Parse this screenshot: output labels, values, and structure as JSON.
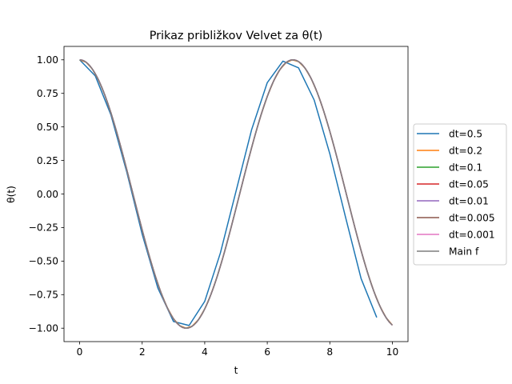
{
  "chart_data": {
    "type": "line",
    "title": "Prikaz približkov Velvet za θ(t)",
    "xlabel": "t",
    "ylabel": "θ(t)",
    "xlim": [
      -0.5,
      10.5
    ],
    "ylim": [
      -1.1,
      1.1
    ],
    "xticks": [
      0,
      2,
      4,
      6,
      8,
      10
    ],
    "xtick_labels": [
      "0",
      "2",
      "4",
      "6",
      "8",
      "10"
    ],
    "yticks": [
      1.0,
      0.75,
      0.5,
      0.25,
      0.0,
      -0.25,
      -0.5,
      -0.75,
      -1.0
    ],
    "ytick_labels": [
      "1.00",
      "0.75",
      "0.50",
      "0.25",
      "0.00",
      "−0.25",
      "−0.50",
      "−0.75",
      "−1.00"
    ],
    "grid": false,
    "legend_position": "outside-right",
    "series": [
      {
        "name": "dt=0.5",
        "color": "#1f77b4",
        "dt": 0.5,
        "x": [
          0,
          0.5,
          1,
          1.5,
          2,
          2.5,
          3,
          3.5,
          4,
          4.5,
          5,
          5.5,
          6,
          6.5,
          7,
          7.5,
          8,
          8.5,
          9,
          9.5
        ],
        "y": [
          1.0,
          0.88,
          0.59,
          0.17,
          -0.3,
          -0.7,
          -0.95,
          -0.98,
          -0.8,
          -0.44,
          0.02,
          0.48,
          0.83,
          0.99,
          0.94,
          0.7,
          0.3,
          -0.17,
          -0.63,
          -0.92
        ]
      },
      {
        "name": "dt=0.2",
        "color": "#ff7f0e",
        "dt": 0.2
      },
      {
        "name": "dt=0.1",
        "color": "#2ca02c",
        "dt": 0.1
      },
      {
        "name": "dt=0.05",
        "color": "#d62728",
        "dt": 0.05
      },
      {
        "name": "dt=0.01",
        "color": "#9467bd",
        "dt": 0.01
      },
      {
        "name": "dt=0.005",
        "color": "#8c564b",
        "dt": 0.005
      },
      {
        "name": "dt=0.001",
        "color": "#e377c2",
        "dt": 0.001
      },
      {
        "name": "Main f",
        "color": "#7f7f7f",
        "dt": 0.05
      }
    ],
    "approx_model": {
      "function": "cos",
      "omega": 0.921,
      "t_max": 10,
      "amplitude": 1.0
    }
  }
}
